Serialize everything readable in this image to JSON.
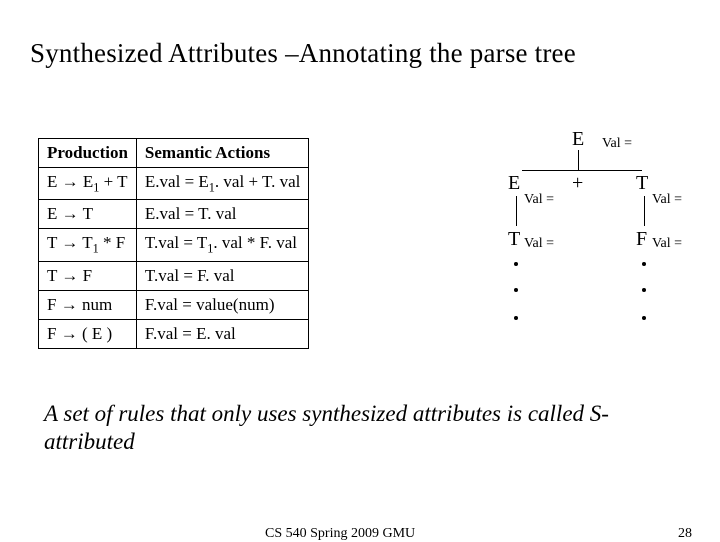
{
  "title": "Synthesized Attributes –Annotating the parse tree",
  "table": {
    "header_production": "Production",
    "header_actions": "Semantic Actions",
    "rows": [
      {
        "prod_lhs": "E",
        "prod_rhs": "E₁ + T",
        "action": "E.val = E₁. val + T. val"
      },
      {
        "prod_lhs": "E",
        "prod_rhs": "T",
        "action": "E.val = T. val"
      },
      {
        "prod_lhs": "T",
        "prod_rhs": "T₁ * F",
        "action": "T.val = T₁. val * F. val"
      },
      {
        "prod_lhs": "T",
        "prod_rhs": "F",
        "action": "T.val = F. val"
      },
      {
        "prod_lhs": "F",
        "prod_rhs": "num",
        "action": "F.val = value(num)"
      },
      {
        "prod_lhs": "F",
        "prod_rhs": "( E )",
        "action": "F.val = E. val"
      }
    ]
  },
  "tree": {
    "root": "E",
    "root_anno": "Val =",
    "level2": {
      "left": "E",
      "left_anno": "Val =",
      "mid": "+",
      "right": "T",
      "right_anno": "Val ="
    },
    "level3": {
      "left": "T",
      "left_anno": "Val =",
      "right": "F",
      "right_anno": "Val ="
    }
  },
  "summary": "A set of rules that only uses synthesized attributes is called S-attributed",
  "footer": {
    "course": "CS 540 Spring 2009 GMU",
    "page": "28"
  },
  "style": {
    "background": "#ffffff",
    "text_color": "#000000",
    "title_fontsize": 27,
    "table_fontsize": 17,
    "summary_fontsize": 23,
    "footer_fontsize": 14,
    "tree_node_fontsize": 20,
    "tree_anno_fontsize": 14
  }
}
